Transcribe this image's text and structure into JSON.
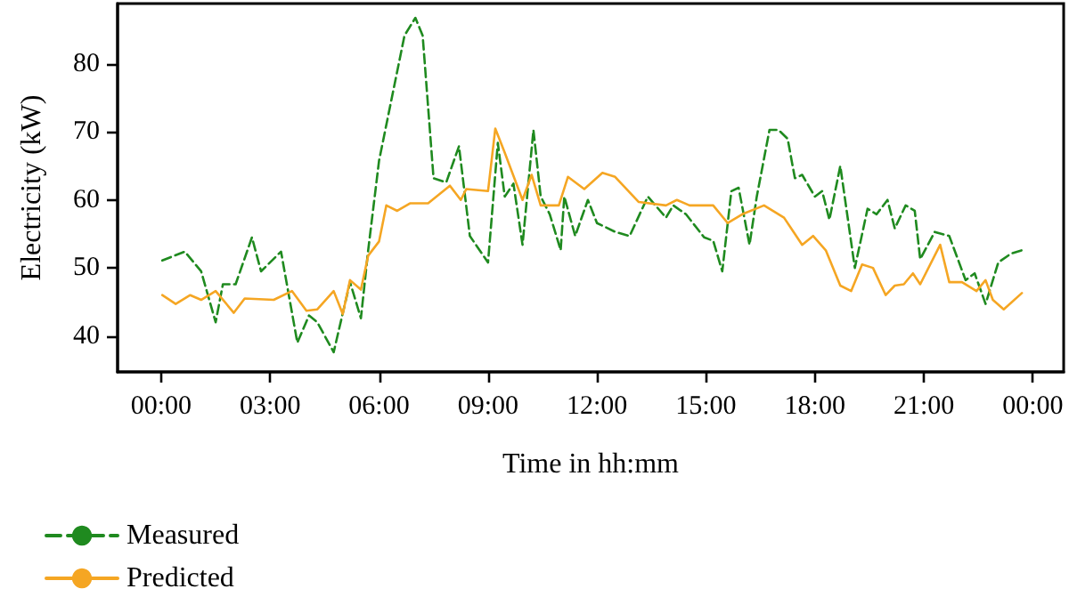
{
  "chart_data": {
    "type": "line",
    "xlabel": "Time in hh:mm",
    "ylabel": "Electricity (kW)",
    "xlim": [
      -1.2,
      24.85
    ],
    "ylim": [
      34.7,
      88.9
    ],
    "xticks": [
      {
        "value": 0,
        "label": "00:00"
      },
      {
        "value": 3,
        "label": "03:00"
      },
      {
        "value": 6,
        "label": "06:00"
      },
      {
        "value": 9,
        "label": "09:00"
      },
      {
        "value": 12,
        "label": "12:00"
      },
      {
        "value": 15,
        "label": "15:00"
      },
      {
        "value": 18,
        "label": "18:00"
      },
      {
        "value": 21,
        "label": "21:00"
      },
      {
        "value": 24,
        "label": "00:00"
      }
    ],
    "yticks": [
      40,
      50,
      60,
      70,
      80
    ],
    "grid": false,
    "legend": "bottom left",
    "marker": "none",
    "series": [
      {
        "name": "Measured",
        "color": "#1f8a1f",
        "line_style": "dashed",
        "x": [
          0.03,
          0.65,
          1.1,
          1.5,
          1.7,
          2.05,
          2.5,
          2.75,
          3.3,
          3.75,
          4.07,
          4.3,
          4.75,
          5.2,
          5.5,
          5.7,
          6.0,
          6.7,
          7.0,
          7.2,
          7.5,
          7.85,
          8.2,
          8.5,
          9.0,
          9.27,
          9.46,
          9.7,
          9.95,
          10.25,
          10.45,
          10.7,
          11.0,
          11.1,
          11.4,
          11.75,
          12.0,
          12.5,
          12.9,
          13.4,
          13.9,
          14.1,
          14.45,
          14.95,
          15.2,
          15.45,
          15.7,
          15.9,
          16.2,
          16.4,
          16.75,
          17.0,
          17.25,
          17.45,
          17.65,
          18.0,
          18.2,
          18.4,
          18.7,
          19.1,
          19.45,
          19.7,
          20.0,
          20.2,
          20.5,
          20.75,
          20.9,
          21.3,
          21.7,
          22.15,
          22.4,
          22.7,
          23.05,
          23.4,
          23.7
        ],
        "values": [
          51.1,
          52.4,
          49.5,
          42,
          47.6,
          47.6,
          54.5,
          49.5,
          52.4,
          39,
          43,
          42,
          37.6,
          47.9,
          42.6,
          52.6,
          65.8,
          84.2,
          86.8,
          84.2,
          63.2,
          62.6,
          67.9,
          54.7,
          50.8,
          68.4,
          60.5,
          62.4,
          53.4,
          70.3,
          60.5,
          57.9,
          52.6,
          60.5,
          54.7,
          60,
          56.6,
          55.3,
          54.7,
          60.5,
          57.4,
          59.2,
          57.9,
          54.5,
          54,
          49.5,
          61.3,
          61.8,
          53.4,
          60.5,
          70.3,
          70.3,
          69,
          63.2,
          63.7,
          60.5,
          61.3,
          57.1,
          65,
          50,
          58.7,
          57.9,
          60,
          55.8,
          59.2,
          58.4,
          51.3,
          55.3,
          54.7,
          48.2,
          49.2,
          44.7,
          50.8,
          52.1,
          52.6
        ]
      },
      {
        "name": "Predicted",
        "color": "#f5a623",
        "line_style": "solid",
        "x": [
          0.03,
          0.4,
          0.8,
          1.1,
          1.5,
          2.0,
          2.3,
          3.1,
          3.6,
          4.0,
          4.3,
          4.75,
          5.0,
          5.2,
          5.5,
          5.7,
          6.0,
          6.2,
          6.5,
          6.85,
          7.35,
          7.95,
          8.25,
          8.4,
          9.0,
          9.2,
          9.45,
          9.95,
          10.2,
          10.45,
          10.95,
          11.2,
          11.65,
          12.15,
          12.5,
          13.15,
          13.9,
          14.2,
          14.55,
          15.2,
          15.6,
          16.0,
          16.6,
          17.15,
          17.65,
          17.95,
          18.3,
          18.7,
          19.0,
          19.3,
          19.6,
          19.95,
          20.2,
          20.45,
          20.7,
          20.9,
          21.45,
          21.7,
          22.05,
          22.45,
          22.7,
          22.9,
          23.2,
          23.7
        ],
        "values": [
          46,
          44.7,
          46,
          45.3,
          46.6,
          43.4,
          45.5,
          45.3,
          46.6,
          43.7,
          43.9,
          46.6,
          43.2,
          48.2,
          46.8,
          51.8,
          53.9,
          59.2,
          58.4,
          59.5,
          59.5,
          62.1,
          60,
          61.6,
          61.3,
          70.5,
          67.1,
          60,
          63.7,
          59.2,
          59.2,
          63.4,
          61.6,
          64,
          63.4,
          59.7,
          59.2,
          60,
          59.2,
          59.2,
          56.6,
          57.9,
          59.2,
          57.4,
          53.4,
          54.7,
          52.6,
          47.4,
          46.6,
          50.5,
          50,
          46,
          47.4,
          47.6,
          49.2,
          47.6,
          53.4,
          47.9,
          47.9,
          46.6,
          48.2,
          45.3,
          43.9,
          46.3
        ]
      }
    ]
  }
}
